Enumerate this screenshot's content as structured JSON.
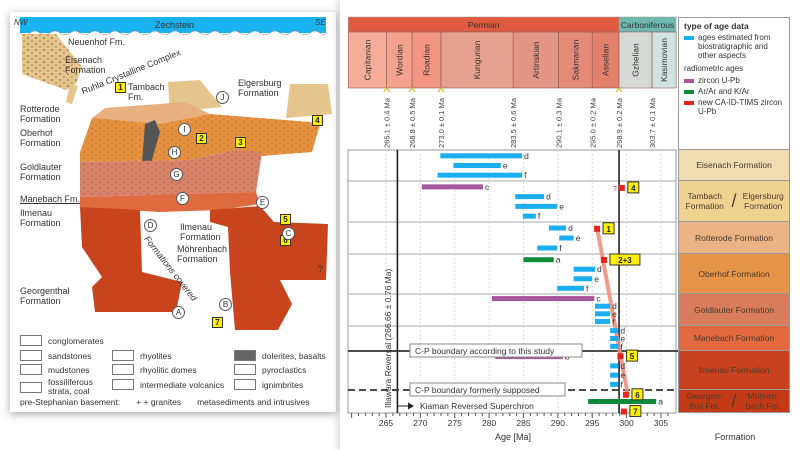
{
  "cross_section": {
    "zechstein": "Zechstein",
    "nw": "NW",
    "se": "SE",
    "labels": {
      "neuenhof": "Neuenhof Fm.",
      "eisenach": "Eisenach Formation",
      "ruhla": "Ruhla Crystalline Complex",
      "tambach": "Tambach Fm.",
      "elgersburg": "Elgersburg Formation",
      "rotterode": "Rotterode Formation",
      "oberhof": "Oberhof Formation",
      "goldlauter": "Goldlauter Formation",
      "manebach": "Manebach Fm.",
      "ilmenau_left": "Ilmenau Formation",
      "ilmenau_right": "Ilmenau Formation",
      "moehrenbach": "Möhrenbach Formation",
      "georgenthal": "Georgenthal Formation",
      "covered": "Formations covered",
      "question": "?"
    },
    "sample_numbers": [
      "1",
      "2",
      "3",
      "4",
      "5",
      "6",
      "7"
    ],
    "sample_letters": [
      "A",
      "B",
      "C",
      "D",
      "E",
      "F",
      "G",
      "H",
      "I",
      "J"
    ],
    "legend": {
      "conglomerates": "conglomerates",
      "sandstones": "sandstones",
      "mudstones": "mudstones",
      "fossiliferous": "fossiliferous strata, coal",
      "rhyolites": "rhyolites",
      "rhyolitic_domes": "rhyolitic domes",
      "intermediate": "intermediate volcanics",
      "dolerites": "dolerites, basalts",
      "pyroclastics": "pyroclastics",
      "ignimbrites": "ignimbrites",
      "basement": "pre-Stephanian basement:",
      "granites": "+ + granites",
      "metasediments": "metasediments and intrusives"
    }
  },
  "chart_data": {
    "type": "range-bar",
    "xlabel": "Age [Ma]",
    "formation_label": "Formation",
    "xlim": [
      259.5,
      307.2
    ],
    "xticks": [
      265,
      270,
      275,
      280,
      285,
      290,
      295,
      300,
      305
    ],
    "periods": [
      {
        "name": "Permian",
        "from": 259.5,
        "to": 298.9,
        "color": "#e05a40"
      },
      {
        "name": "Carboniferous",
        "from": 298.9,
        "to": 307.2,
        "color": "#6fb8b0"
      }
    ],
    "stages": [
      {
        "name": "Capitanian",
        "from": 259.5,
        "to": 265.1,
        "color": "#f5ad98"
      },
      {
        "name": "Wordian",
        "from": 265.1,
        "to": 268.8,
        "color": "#f2a18c"
      },
      {
        "name": "Roadian",
        "from": 268.8,
        "to": 273.0,
        "color": "#f29583"
      },
      {
        "name": "Kungurian",
        "from": 273.0,
        "to": 283.5,
        "color": "#e6a08e"
      },
      {
        "name": "Artinskian",
        "from": 283.5,
        "to": 290.1,
        "color": "#e39584"
      },
      {
        "name": "Sakmarian",
        "from": 290.1,
        "to": 295.0,
        "color": "#e68a78"
      },
      {
        "name": "Asselian",
        "from": 295.0,
        "to": 298.9,
        "color": "#e3806c"
      },
      {
        "name": "Gzhelian",
        "from": 298.9,
        "to": 303.7,
        "color": "#d6d9d6"
      },
      {
        "name": "Kasimovian",
        "from": 303.7,
        "to": 307.2,
        "color": "#cfe3e1"
      }
    ],
    "boundary_ages": [
      {
        "age": 265.1,
        "label": "265.1 ± 0.4 Ma"
      },
      {
        "age": 268.8,
        "label": "268.8 ± 0.5 Ma"
      },
      {
        "age": 273.0,
        "label": "273.0 ± 0.1 Ma"
      },
      {
        "age": 283.5,
        "label": "283.5 ± 0.6 Ma"
      },
      {
        "age": 290.1,
        "label": "290.1 ± 0.3 Ma"
      },
      {
        "age": 295.0,
        "label": "295.0 ± 0.2 Ma"
      },
      {
        "age": 298.9,
        "label": "298.9 ± 0.2 Ma"
      },
      {
        "age": 303.7,
        "label": "303.7 ± 0.1 Ma"
      }
    ],
    "legend": {
      "title": "type of age data",
      "bio": "ages estimated from biostratigraphic and other aspects",
      "radiometric": "radiometric ages",
      "zircon": "zircon U-Pb",
      "arar": "Ar/Ar and K/Ar",
      "catims": "new CA-ID-TIMS zircon U-Pb"
    },
    "colors": {
      "bio": "#1aaef0",
      "zircon": "#a8579e",
      "arar": "#108a3a",
      "catims": "#e8221c",
      "trend": "#f0907e"
    },
    "formations": [
      {
        "name": "Eisenach Formation",
        "color": "#efdcb0",
        "bars": [
          {
            "type": "bio",
            "from": 272.9,
            "to": 284.8,
            "label": "d"
          },
          {
            "type": "bio",
            "from": 274.8,
            "to": 281.7,
            "label": "e"
          },
          {
            "type": "bio",
            "from": 272.5,
            "to": 284.8,
            "label": "f"
          }
        ]
      },
      {
        "name": "Tambach Formation",
        "name2": "Elgersburg Formation",
        "color": "#f0d290",
        "bars": [
          {
            "type": "zircon",
            "from": 270.2,
            "to": 279.1,
            "label": "c"
          },
          {
            "type": "bio",
            "from": 283.8,
            "to": 288.0,
            "label": "d"
          },
          {
            "type": "bio",
            "from": 283.8,
            "to": 289.9,
            "label": "e"
          },
          {
            "type": "bio",
            "from": 284.9,
            "to": 286.8,
            "label": "f"
          }
        ]
      },
      {
        "name": "Rotterode Formation",
        "color": "#e9b384",
        "bars": [
          {
            "type": "bio",
            "from": 288.7,
            "to": 291.2,
            "label": "d"
          },
          {
            "type": "bio",
            "from": 290.2,
            "to": 292.3,
            "label": "e"
          },
          {
            "type": "bio",
            "from": 287.0,
            "to": 289.9,
            "label": "f"
          }
        ]
      },
      {
        "name": "Oberhof Formation",
        "color": "#e69447",
        "bars": [
          {
            "type": "arar",
            "from": 285.0,
            "to": 289.4,
            "label": "a"
          },
          {
            "type": "bio",
            "from": 292.3,
            "to": 295.4,
            "label": "d"
          },
          {
            "type": "bio",
            "from": 292.3,
            "to": 295.0,
            "label": "e"
          },
          {
            "type": "bio",
            "from": 289.9,
            "to": 293.8,
            "label": "f"
          }
        ]
      },
      {
        "name": "Goldlauter Formation",
        "color": "#d87c5c",
        "bars": [
          {
            "type": "zircon",
            "from": 280.4,
            "to": 295.3,
            "label": "c"
          },
          {
            "type": "bio",
            "from": 295.4,
            "to": 297.6,
            "label": "d"
          },
          {
            "type": "bio",
            "from": 295.4,
            "to": 297.6,
            "label": "e"
          },
          {
            "type": "bio",
            "from": 295.4,
            "to": 297.6,
            "label": "f"
          }
        ]
      },
      {
        "name": "Manebach Formation",
        "color": "#e2693f",
        "bars": [
          {
            "type": "bio",
            "from": 297.6,
            "to": 298.8,
            "label": "d"
          },
          {
            "type": "bio",
            "from": 297.6,
            "to": 298.8,
            "label": "e"
          },
          {
            "type": "bio",
            "from": 297.6,
            "to": 298.8,
            "label": "f"
          }
        ]
      },
      {
        "name": "Ilmenau Formation",
        "color": "#c9421f",
        "bars": [
          {
            "type": "zircon",
            "from": 280.9,
            "to": 290.7,
            "label": "b"
          },
          {
            "type": "bio",
            "from": 297.6,
            "to": 298.8,
            "label": "d"
          },
          {
            "type": "bio",
            "from": 297.6,
            "to": 298.8,
            "label": "e"
          },
          {
            "type": "bio",
            "from": 297.6,
            "to": 298.8,
            "label": "f"
          }
        ]
      },
      {
        "name": "Georgen-thal Fm.",
        "name2": "Möhren-bach Fm.",
        "color": "#c53a16",
        "bars": [
          {
            "type": "arar",
            "from": 294.4,
            "to": 304.3,
            "label": "a"
          }
        ]
      }
    ],
    "new_ages": [
      {
        "sample": "1",
        "age": 295.7,
        "formation": 2,
        "pos": 0.15
      },
      {
        "sample": "4",
        "age": 299.3,
        "formation": 1,
        "pos": 0.12,
        "uncertain": "?"
      },
      {
        "sample": "2+3",
        "age": 296.7,
        "formation": 3,
        "pos": 0.1
      },
      {
        "sample": "5",
        "age": 299.1,
        "formation": 6,
        "pos": 0.08
      },
      {
        "sample": "6",
        "age": 299.9,
        "formation": 7,
        "pos": 0.12
      },
      {
        "sample": "7",
        "age": 299.6,
        "formation": 7,
        "pos": 0.85
      }
    ],
    "annotations": {
      "cp_this_study": "C-P boundary according to this study",
      "cp_former": "C-P boundary formerly supposed",
      "kiaman": "Kiaman Reversed Superchron",
      "illawarra": "Illawara  Reversal (266.66 ± 0.76 Ma)",
      "illawarra_age": 266.66,
      "cp_age": 298.9
    }
  }
}
